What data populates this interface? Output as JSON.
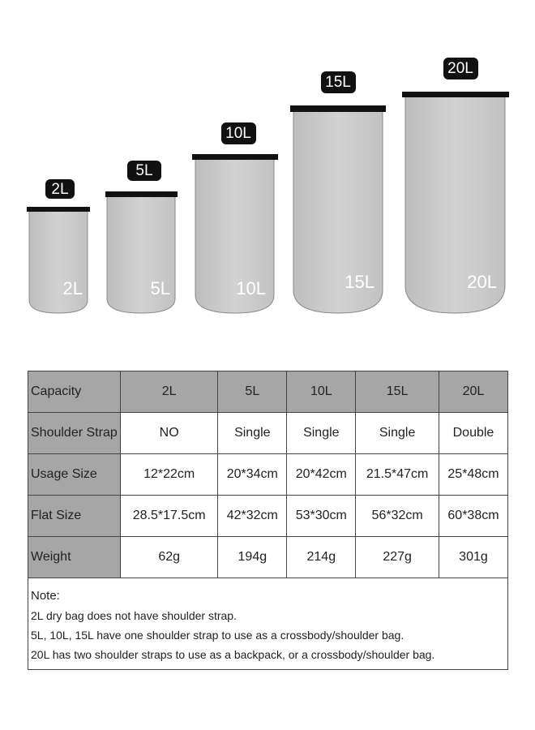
{
  "bags": [
    {
      "tag": "2L",
      "label": "2L"
    },
    {
      "tag": "5L",
      "label": "5L"
    },
    {
      "tag": "10L",
      "label": "10L"
    },
    {
      "tag": "15L",
      "label": "15L"
    },
    {
      "tag": "20L",
      "label": "20L"
    }
  ],
  "table": {
    "header": [
      "Capacity",
      "2L",
      "5L",
      "10L",
      "15L",
      "20L"
    ],
    "rows": [
      [
        "Shoulder Strap",
        "NO",
        "Single",
        "Single",
        "Single",
        "Double"
      ],
      [
        "Usage Size",
        "12*22cm",
        "20*34cm",
        "20*42cm",
        "21.5*47cm",
        "25*48cm"
      ],
      [
        "Flat Size",
        "28.5*17.5cm",
        "42*32cm",
        "53*30cm",
        "56*32cm",
        "60*38cm"
      ],
      [
        "Weight",
        "62g",
        "194g",
        "214g",
        "227g",
        "301g"
      ]
    ],
    "note": {
      "title": "Note:",
      "lines": [
        "2L dry bag does not have shoulder strap.",
        "5L, 10L, 15L have one shoulder strap to use as a crossbody/shoulder bag.",
        "20L has two shoulder straps to use as a backpack, or a crossbody/shoulder bag."
      ]
    }
  }
}
